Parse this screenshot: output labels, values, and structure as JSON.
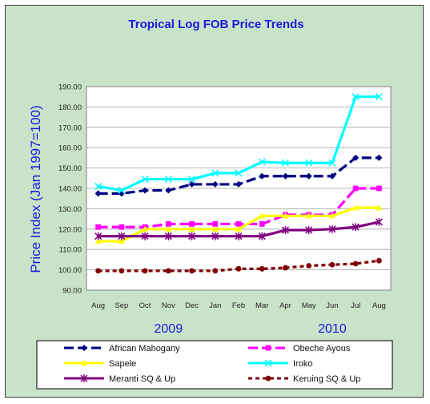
{
  "chart_data": {
    "type": "line",
    "title": "Tropical Log FOB Price Trends",
    "ylabel": "Price Index (Jan 1997=100)",
    "xlabel": "",
    "ylim": [
      90,
      190
    ],
    "yticks": [
      "90.00",
      "100.00",
      "110.00",
      "120.00",
      "130.00",
      "140.00",
      "150.00",
      "160.00",
      "170.00",
      "180.00",
      "190.00"
    ],
    "categories": [
      "Aug",
      "Sep",
      "Oct",
      "Nov",
      "Dec",
      "Jan",
      "Feb",
      "Mar",
      "Apr",
      "May",
      "Jun",
      "Jul",
      "Aug"
    ],
    "year_labels": [
      {
        "text": "2009",
        "category_index": 3
      },
      {
        "text": "2010",
        "category_index": 10
      }
    ],
    "grid": true,
    "legend_position": "bottom",
    "series": [
      {
        "name": "African Mahogany",
        "color": "#000080",
        "marker": "diamond",
        "dash": "long",
        "values": [
          137.5,
          137.5,
          139,
          139,
          142,
          142,
          142,
          146,
          146,
          146,
          146,
          155,
          155
        ]
      },
      {
        "name": "Obeche Ayous",
        "color": "#ff00ff",
        "marker": "square",
        "dash": "long",
        "values": [
          121,
          121,
          121,
          122.5,
          122.5,
          122.5,
          122.5,
          122.5,
          127,
          127,
          127,
          140,
          140
        ]
      },
      {
        "name": "Sapele",
        "color": "#ffff00",
        "marker": "triangle",
        "dash": "solid",
        "values": [
          114,
          114,
          120,
          120,
          120,
          120,
          120,
          126.5,
          126.5,
          126.5,
          126.5,
          130.5,
          130.5
        ]
      },
      {
        "name": "Iroko",
        "color": "#00ffff",
        "marker": "x",
        "dash": "solid",
        "values": [
          141,
          139,
          144.5,
          144.5,
          144.5,
          147.5,
          147.5,
          153,
          152.5,
          152.5,
          152.5,
          185,
          185
        ]
      },
      {
        "name": "Meranti SQ & Up",
        "color": "#800080",
        "marker": "star",
        "dash": "solid",
        "values": [
          116.5,
          116.5,
          116.5,
          116.5,
          116.5,
          116.5,
          116.5,
          116.5,
          119.5,
          119.5,
          120,
          121,
          123.5
        ]
      },
      {
        "name": "Keruing SQ & Up",
        "color": "#800000",
        "marker": "circle",
        "dash": "dashed",
        "values": [
          99.5,
          99.5,
          99.5,
          99.5,
          99.5,
          99.5,
          100.5,
          100.5,
          101,
          102,
          102.5,
          103,
          104.5
        ]
      }
    ]
  }
}
